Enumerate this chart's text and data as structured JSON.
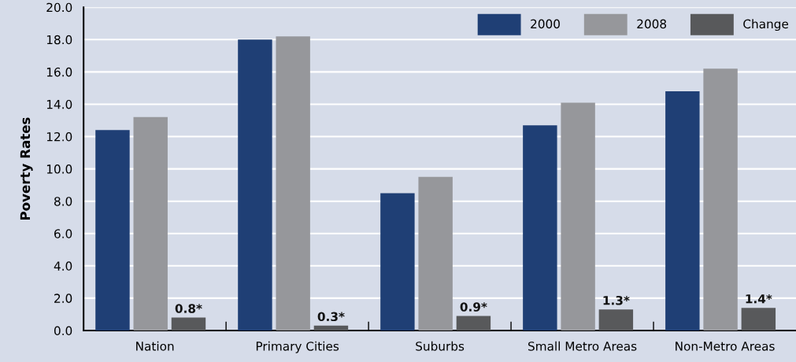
{
  "chart_data": {
    "type": "bar",
    "ylabel": "Poverty Rates",
    "categories": [
      "Nation",
      "Primary Cities",
      "Suburbs",
      "Small Metro Areas",
      "Non-Metro Areas"
    ],
    "series": [
      {
        "name": "2000",
        "color": "#1f3f75",
        "values": [
          12.4,
          18.0,
          8.5,
          12.7,
          14.8
        ]
      },
      {
        "name": "2008",
        "color": "#96979b",
        "values": [
          13.2,
          18.2,
          9.5,
          14.1,
          16.2
        ]
      },
      {
        "name": "Change",
        "color": "#58595b",
        "values": [
          0.8,
          0.3,
          0.9,
          1.3,
          1.4
        ],
        "value_labels": [
          "0.8*",
          "0.3*",
          "0.9*",
          "1.3*",
          "1.4*"
        ]
      }
    ],
    "ylim": [
      0,
      20
    ],
    "yticks": [
      {
        "value": 0,
        "label": "0.0"
      },
      {
        "value": 2,
        "label": "2.0"
      },
      {
        "value": 4,
        "label": "4.0"
      },
      {
        "value": 6,
        "label": "6.0"
      },
      {
        "value": 8,
        "label": "8.0"
      },
      {
        "value": 10,
        "label": "10.0"
      },
      {
        "value": 12,
        "label": "12.0"
      },
      {
        "value": 14,
        "label": "14.0"
      },
      {
        "value": 16,
        "label": "16.0"
      },
      {
        "value": 18,
        "label": "18.0"
      },
      {
        "value": 20,
        "label": "20.0"
      }
    ],
    "grid": "y",
    "legend": "top right"
  }
}
